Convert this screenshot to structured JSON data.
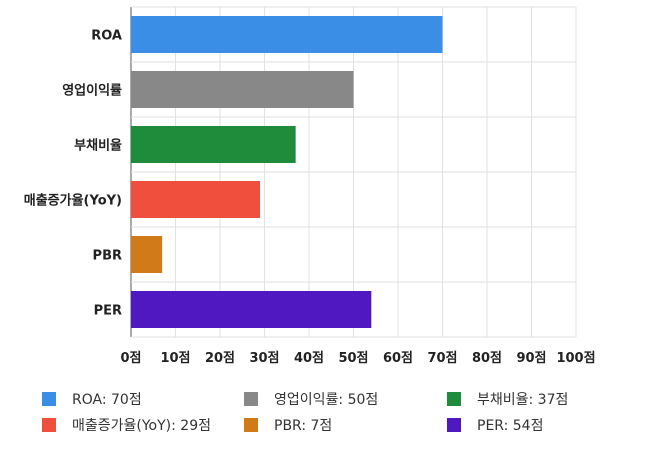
{
  "chart_data": {
    "type": "bar",
    "orientation": "horizontal",
    "categories": [
      "ROA",
      "영업이익률",
      "부채비율",
      "매출증가율(YoY)",
      "PBR",
      "PER"
    ],
    "values": [
      70,
      50,
      37,
      29,
      7,
      54
    ],
    "colors": [
      "#3a8ee6",
      "#888888",
      "#1e8c3a",
      "#ef4f3c",
      "#d07a1a",
      "#5018c0"
    ],
    "xlim": [
      0,
      100
    ],
    "ticks": [
      0,
      10,
      20,
      30,
      40,
      50,
      60,
      70,
      80,
      90,
      100
    ],
    "tick_labels": [
      "0점",
      "10점",
      "20점",
      "30점",
      "40점",
      "50점",
      "60점",
      "70점",
      "80점",
      "90점",
      "100점"
    ],
    "grid": true,
    "legend_position": "bottom",
    "legend": [
      "ROA: 70점",
      "영업이익률: 50점",
      "부채비율: 37점",
      "매출증가율(YoY): 29점",
      "PBR: 7점",
      "PER: 54점"
    ]
  }
}
